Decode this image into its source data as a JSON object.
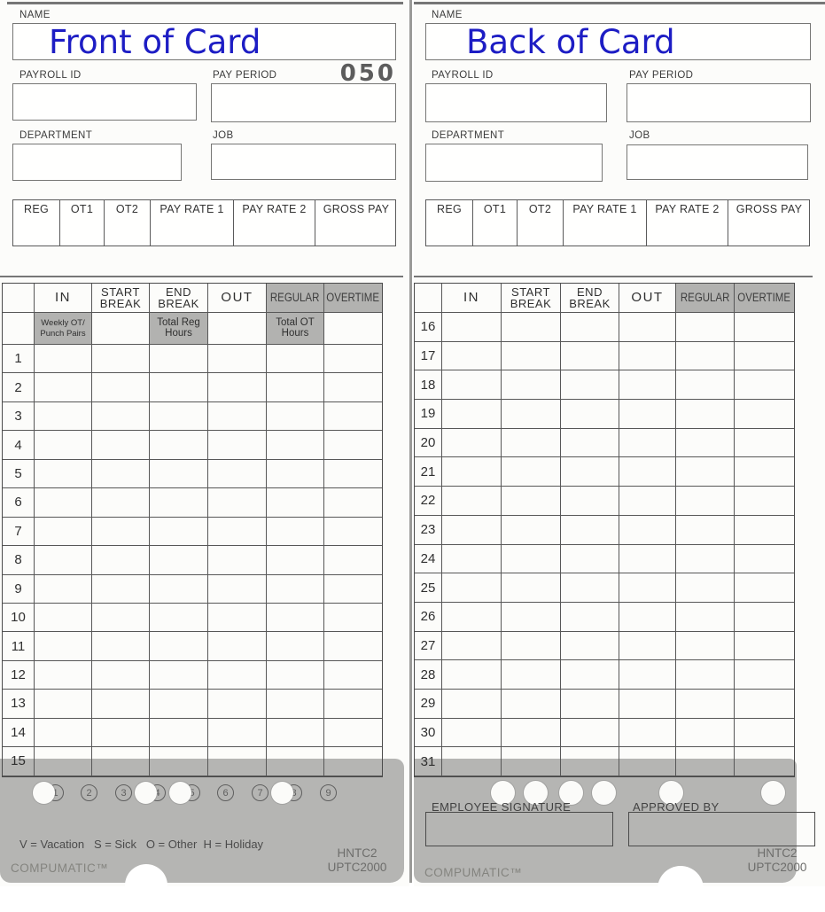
{
  "colors": {
    "title_blue": "#1d1dc4",
    "shade_gray": "#b2b2b0",
    "footer_gray": "#b5b5b3"
  },
  "shared": {
    "name_label": "NAME",
    "payroll_id_label": "PAYROLL ID",
    "pay_period_label": "PAY PERIOD",
    "department_label": "DEPARTMENT",
    "job_label": "JOB",
    "pay_columns": [
      "REG",
      "OT1",
      "OT2",
      "PAY RATE 1",
      "PAY RATE 2",
      "GROSS PAY"
    ],
    "brand": "COMPUMATIC™",
    "model_line1": "HNTC2",
    "model_line2": "UPTC2000"
  },
  "time_table": {
    "columns": [
      {
        "id": "row",
        "label": "",
        "shaded": false
      },
      {
        "id": "in",
        "label": "IN",
        "shaded": false
      },
      {
        "id": "start_break",
        "label": "START\nBREAK",
        "shaded": false
      },
      {
        "id": "end_break",
        "label": "END\nBREAK",
        "shaded": false
      },
      {
        "id": "out",
        "label": "OUT",
        "shaded": false
      },
      {
        "id": "regular",
        "label": "REGULAR",
        "shaded": true
      },
      {
        "id": "overtime",
        "label": "OVERTIME",
        "shaded": true
      }
    ],
    "front_subheader": {
      "in": "Weekly OT/\nPunch Pairs",
      "end_break": "Total Reg\nHours",
      "regular": "Total OT\nHours"
    },
    "front_row_numbers": [
      "1",
      "2",
      "3",
      "4",
      "5",
      "6",
      "7",
      "8",
      "9",
      "10",
      "11",
      "12",
      "13",
      "14",
      "15"
    ],
    "back_row_numbers": [
      "16",
      "17",
      "18",
      "19",
      "20",
      "21",
      "22",
      "23",
      "24",
      "25",
      "26",
      "27",
      "28",
      "29",
      "30",
      "31"
    ]
  },
  "front": {
    "title": "Front of Card",
    "pay_period_number": "050",
    "punch_slots": [
      {
        "digit": "1",
        "punched": true
      },
      {
        "digit": "2",
        "punched": false
      },
      {
        "digit": "3",
        "punched": false
      },
      {
        "digit": "4",
        "punched": true
      },
      {
        "digit": "5",
        "punched": true
      },
      {
        "digit": "6",
        "punched": false
      },
      {
        "digit": "7",
        "punched": false
      },
      {
        "digit": "8",
        "punched": true
      },
      {
        "digit": "9",
        "punched": false
      }
    ],
    "legend": "V = Vacation   S = Sick   O = Other  H = Holiday"
  },
  "back": {
    "title": "Back of Card",
    "signature_label": "EMPLOYEE SIGNATURE",
    "approved_by_label": "APPROVED BY",
    "footer_hole_positions": [
      100,
      137,
      177,
      214,
      290,
      405
    ]
  }
}
